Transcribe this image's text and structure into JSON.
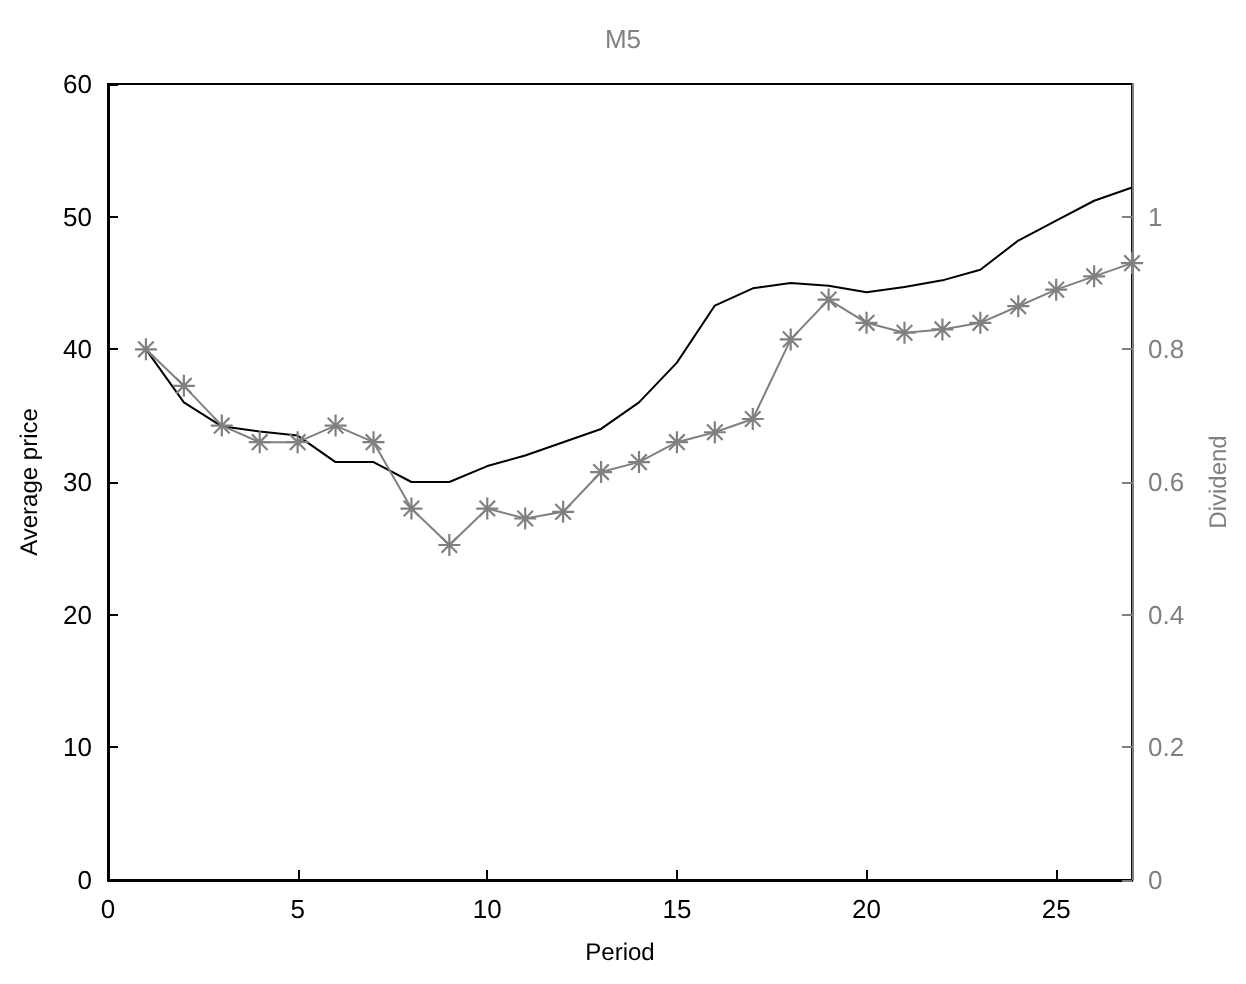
{
  "chart_data": {
    "type": "line",
    "title": "M5",
    "xlabel": "Period",
    "ylabel": "Average price",
    "y2label": "Dividend",
    "x": [
      1,
      2,
      3,
      4,
      5,
      6,
      7,
      8,
      9,
      10,
      11,
      12,
      13,
      14,
      15,
      16,
      17,
      18,
      19,
      20,
      21,
      22,
      23,
      24,
      25,
      26,
      27
    ],
    "series": [
      {
        "color": "#000000",
        "marker": "none",
        "values": [
          40,
          36,
          34.2,
          33.8,
          33.5,
          31.5,
          31.5,
          30,
          30,
          31.2,
          32,
          33,
          34,
          36,
          39,
          43.3,
          44.6,
          45,
          44.8,
          44.3,
          44.7,
          45.2,
          46,
          48.2,
          49.7,
          51.2,
          52.2
        ]
      },
      {
        "color": "#808080",
        "marker": "star",
        "axis": "y2",
        "values": [
          0.8,
          0.745,
          0.685,
          0.66,
          0.66,
          0.685,
          0.66,
          0.56,
          0.505,
          0.56,
          0.545,
          0.555,
          0.615,
          0.63,
          0.66,
          0.675,
          0.695,
          0.815,
          0.875,
          0.84,
          0.825,
          0.83,
          0.84,
          0.865,
          0.89,
          0.91,
          0.93
        ]
      }
    ],
    "xlim": [
      0,
      27
    ],
    "xticks": [
      0,
      5,
      10,
      15,
      20,
      25
    ],
    "ylim": [
      0,
      60
    ],
    "yticks": [
      0,
      10,
      20,
      30,
      40,
      50,
      60
    ],
    "y2lim": [
      0,
      1.2
    ],
    "y2ticks": [
      0,
      0.2,
      0.4,
      0.6,
      0.8,
      1
    ],
    "grid": false
  }
}
